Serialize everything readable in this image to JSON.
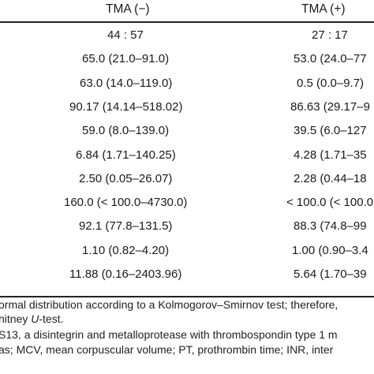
{
  "table": {
    "headers": {
      "col1": "TMA (−)",
      "col2": "TMA (+)"
    },
    "rows": [
      {
        "c1": "44 : 57",
        "c2": "27 : 17"
      },
      {
        "c1": "65.0 (21.0–91.0)",
        "c2": "53.0 (24.0–77"
      },
      {
        "c1": "63.0 (14.0–119.0)",
        "c2": "0.5 (0.0–9.7)"
      },
      {
        "c1": "90.17 (14.14–518.02)",
        "c2": "86.63 (29.17–9"
      },
      {
        "c1": "59.0 (8.0–139.0)",
        "c2": "39.5 (6.0–127"
      },
      {
        "c1": "6.84 (1.71–140.25)",
        "c2": "4.28 (1.71–35"
      },
      {
        "c1": "2.50 (0.05–26.07)",
        "c2": "2.28 (0.44–18"
      },
      {
        "c1": "160.0 (< 100.0–4730.0)",
        "c2": "< 100.0 (< 100.0"
      },
      {
        "c1": "92.1 (77.8–131.5)",
        "c2": "88.3 (74.8–99"
      },
      {
        "c1": "1.10 (0.82–4.20)",
        "c2": "1.00 (0.90–3.4"
      },
      {
        "c1": "11.88 (0.16–2403.96)",
        "c2": "5.64 (1.70–39"
      }
    ]
  },
  "footnotes": [
    "ormal distribution according to a Kolmogorov–Smirnov test; therefore,",
    "hitney U-test.",
    "S13, a disintegrin and metalloprotease with thrombospondin type 1 m",
    "as; MCV, mean corpuscular volume; PT, prothrombin time; INR, inter"
  ]
}
